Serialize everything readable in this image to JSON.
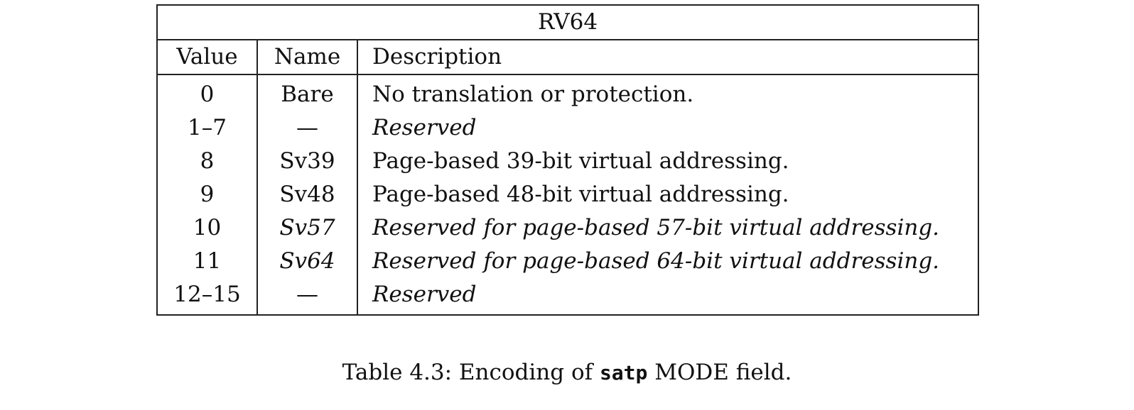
{
  "table": {
    "title": "RV64",
    "headers": {
      "value": "Value",
      "name": "Name",
      "description": "Description"
    },
    "rows": [
      {
        "value": "0",
        "name": "Bare",
        "description": "No translation or protection.",
        "name_italic": false,
        "desc_italic": false
      },
      {
        "value": "1–7",
        "name": "—",
        "description": "Reserved",
        "name_italic": false,
        "desc_italic": true
      },
      {
        "value": "8",
        "name": "Sv39",
        "description": "Page-based 39-bit virtual addressing.",
        "name_italic": false,
        "desc_italic": false
      },
      {
        "value": "9",
        "name": "Sv48",
        "description": "Page-based 48-bit virtual addressing.",
        "name_italic": false,
        "desc_italic": false
      },
      {
        "value": "10",
        "name": "Sv57",
        "description": "Reserved for page-based 57-bit virtual addressing.",
        "name_italic": true,
        "desc_italic": true
      },
      {
        "value": "11",
        "name": "Sv64",
        "description": "Reserved for page-based 64-bit virtual addressing.",
        "name_italic": true,
        "desc_italic": true
      },
      {
        "value": "12–15",
        "name": "—",
        "description": "Reserved",
        "name_italic": false,
        "desc_italic": true
      }
    ]
  },
  "caption": {
    "prefix": "Table 4.3: Encoding of ",
    "code": "satp",
    "suffix": " MODE field."
  }
}
